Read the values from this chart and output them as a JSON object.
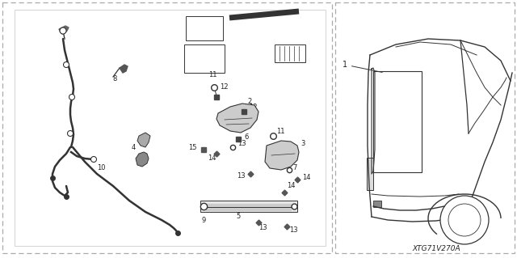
{
  "bg_color": "#ffffff",
  "line_color": "#333333",
  "text_color": "#222222",
  "ref_code": "XTG71V270A",
  "figsize": [
    6.4,
    3.19
  ],
  "dpi": 100
}
